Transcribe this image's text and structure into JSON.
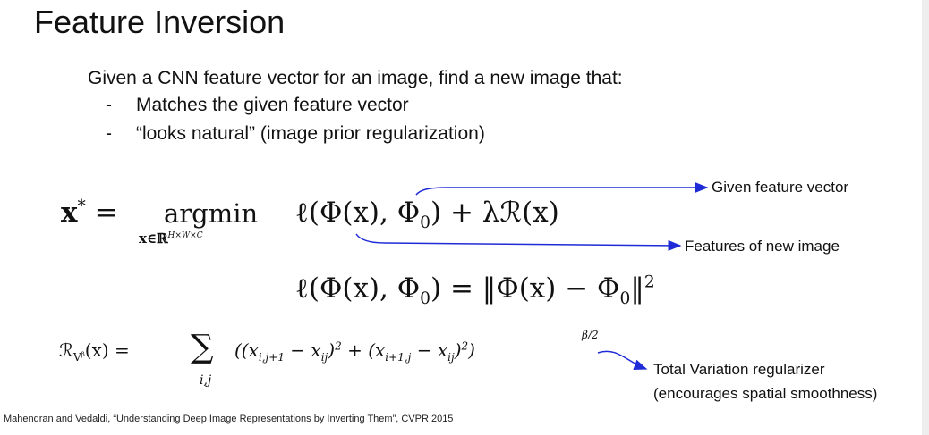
{
  "title": "Feature Inversion",
  "intro": "Given a CNN feature vector for an image, find a new image that:",
  "bullets": [
    {
      "dash": "-",
      "text": "Matches the given feature vector"
    },
    {
      "dash": "-",
      "text": "“looks natural” (image prior regularization)"
    }
  ],
  "eq1": {
    "lhs": "x",
    "lhs_sup": "*",
    "eq": "=",
    "argmin": "argmin",
    "argmin_sub": "x∈ℝ",
    "argmin_sub_sup": "H×W×C",
    "loss": "ℓ(Φ(x), Φ",
    "loss_sub": "0",
    "loss_end": ") + λℛ(x)"
  },
  "eq2": {
    "left": "ℓ(Φ(x), Φ",
    "left_sub": "0",
    "mid": ") = ‖Φ(x) − Φ",
    "mid_sub": "0",
    "right": "‖",
    "right_sup": "2"
  },
  "eq3": {
    "r": "ℛ",
    "r_sub": "V",
    "r_sub_sup": "β",
    "r_arg": "(x) =",
    "sum": "∑",
    "sum_sub": "i,j",
    "body_a": "((x",
    "body_a_sub": "i,j+1",
    "body_b": " − x",
    "body_b_sub": "ij",
    "body_c": ")",
    "body_c_sup": "2",
    "body_d": " + (x",
    "body_d_sub": "i+1,j",
    "body_e": " − x",
    "body_e_sub": "ij",
    "body_f": ")",
    "body_f_sup": "2",
    "body_g": ")",
    "exp": "β/2"
  },
  "annotations": {
    "given": "Given feature vector",
    "features": "Features of new image",
    "tv1": "Total Variation regularizer",
    "tv2": "(encourages spatial smoothness)"
  },
  "citation": "Mahendran and Vedaldi, “Understanding Deep Image Representations by Inverting Them”, CVPR 2015",
  "colors": {
    "arrow": "#1f2bd6",
    "text": "#111111"
  }
}
